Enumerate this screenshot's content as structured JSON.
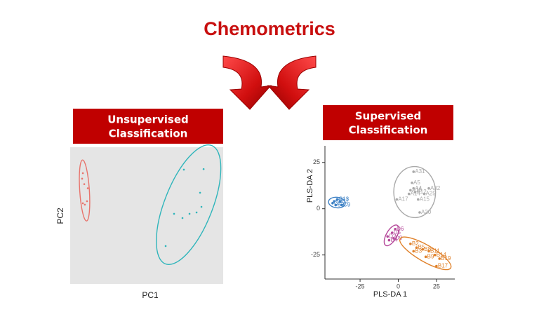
{
  "title": "Chemometrics",
  "panels": [
    {
      "heading_lines": [
        "Unsupervised",
        "Classification"
      ]
    },
    {
      "heading_lines": [
        "Supervised",
        "Classification"
      ]
    }
  ],
  "chart_data": [
    {
      "type": "scatter",
      "x_label": "PC1",
      "y_label": "PC2",
      "xlim": [
        0,
        100
      ],
      "ylim": [
        0,
        100
      ],
      "series": [
        {
          "color": "#e8736b",
          "x": [
            8.3,
            7.8,
            9.2,
            11.5,
            8.3,
            9.6,
            11
          ],
          "y": [
            81,
            77,
            73,
            70,
            59,
            58,
            60.5
          ]
        },
        {
          "color": "#2fb5bb",
          "x": [
            74.3,
            87.2,
            84.9,
            85.8,
            78,
            73.4,
            67.9,
            62.4,
            82.6
          ],
          "y": [
            83.6,
            84,
            66.7,
            56.4,
            51.3,
            48.2,
            51.3,
            27.7,
            52.3
          ]
        }
      ]
    },
    {
      "type": "scatter",
      "x_label": "PLS-DA 1",
      "y_label": "PLS-DA 2",
      "xlim": [
        -48,
        37
      ],
      "ylim": [
        -38,
        34
      ],
      "xticks": [
        -25,
        0,
        25
      ],
      "yticks": [
        -25,
        0,
        25
      ],
      "series": [
        {
          "color": "#a9a9a9",
          "x": [
            10,
            9,
            10,
            8,
            7,
            11,
            20,
            17,
            13,
            -1,
            14
          ],
          "y": [
            20,
            14,
            11,
            10,
            8,
            9,
            11,
            8,
            5,
            5,
            -2
          ],
          "labels": [
            "A31",
            "A5",
            "A4",
            "A16",
            "A14",
            "A12",
            "A32",
            "A25",
            "A15",
            "A17",
            "A20"
          ]
        },
        {
          "color": "#3a7fc4",
          "x": [
            -40,
            -42,
            -38,
            -41,
            -37,
            -43
          ],
          "y": [
            5,
            4,
            4,
            2,
            2,
            3
          ],
          "labels": [
            "C13",
            "C1",
            "C7",
            "C3",
            "C9",
            "C2"
          ]
        },
        {
          "color": "#b5489a",
          "x": [
            -4,
            -7,
            -3,
            -6,
            -2
          ],
          "y": [
            -13,
            -15,
            -16,
            -17,
            -11
          ],
          "labels": [
            "D5",
            "D2",
            "D9",
            "D4",
            "D6"
          ]
        },
        {
          "color": "#e0812a",
          "x": [
            8,
            12,
            16,
            20,
            24,
            27,
            25,
            10,
            18
          ],
          "y": [
            -19,
            -21,
            -22,
            -23,
            -25,
            -27,
            -31,
            -23,
            -26
          ],
          "labels": [
            "B2",
            "B5",
            "B8",
            "B11",
            "B14",
            "B19",
            "B17",
            "B3",
            "B9"
          ]
        }
      ]
    }
  ]
}
